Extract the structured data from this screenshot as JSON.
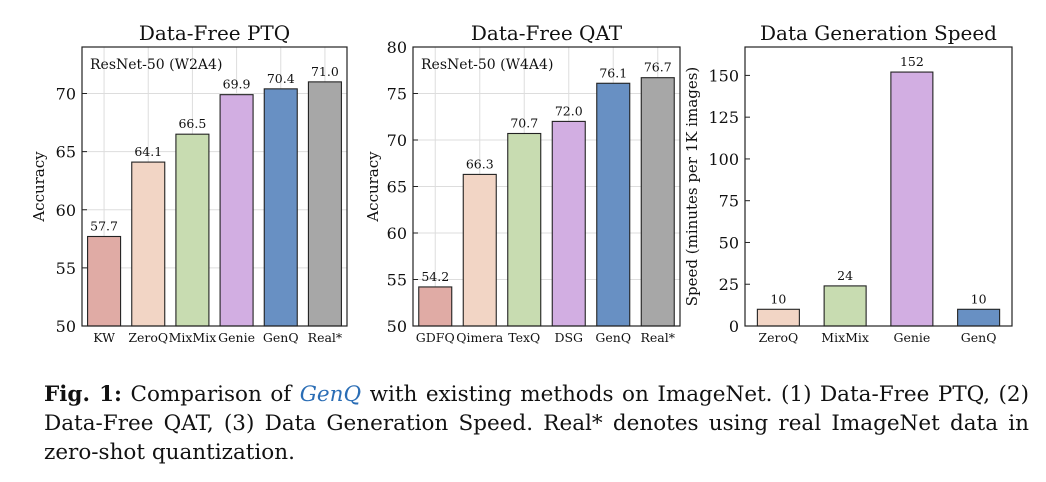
{
  "chart_data": [
    {
      "type": "bar",
      "title": "Data-Free PTQ",
      "annotation": "ResNet-50 (W2A4)",
      "ylabel": "Accuracy",
      "xlabel": "",
      "ylim": [
        50,
        74
      ],
      "yticks": [
        50,
        55,
        60,
        65,
        70
      ],
      "grid": true,
      "categories": [
        "KW",
        "ZeroQ",
        "MixMix",
        "Genie",
        "GenQ",
        "Real*"
      ],
      "values": [
        57.7,
        64.1,
        66.5,
        69.9,
        70.4,
        71.0
      ],
      "labels": [
        "57.7",
        "64.1",
        "66.5",
        "69.9",
        "70.4",
        "71.0"
      ],
      "colors": [
        "#e0aba5",
        "#f2d5c5",
        "#c8dcb1",
        "#d2aee2",
        "#6890c3",
        "#a7a7a7"
      ]
    },
    {
      "type": "bar",
      "title": "Data-Free QAT",
      "annotation": "ResNet-50 (W4A4)",
      "ylabel": "Accuracy",
      "xlabel": "",
      "ylim": [
        50,
        80
      ],
      "yticks": [
        50,
        55,
        60,
        65,
        70,
        75,
        80
      ],
      "grid": true,
      "categories": [
        "GDFQ",
        "Qimera",
        "TexQ",
        "DSG",
        "GenQ",
        "Real*"
      ],
      "values": [
        54.2,
        66.3,
        70.7,
        72.0,
        76.1,
        76.7
      ],
      "labels": [
        "54.2",
        "66.3",
        "70.7",
        "72.0",
        "76.1",
        "76.7"
      ],
      "colors": [
        "#e0aba5",
        "#f2d5c5",
        "#c8dcb1",
        "#d2aee2",
        "#6890c3",
        "#a7a7a7"
      ]
    },
    {
      "type": "bar",
      "title": "Data Generation Speed",
      "annotation": "",
      "ylabel": "Speed (minutes per 1K images)",
      "xlabel": "",
      "ylim": [
        0,
        167
      ],
      "yticks": [
        0,
        25,
        50,
        75,
        100,
        125,
        150
      ],
      "grid": false,
      "categories": [
        "ZeroQ",
        "MixMix",
        "Genie",
        "GenQ"
      ],
      "values": [
        10,
        24,
        152,
        10
      ],
      "labels": [
        "10",
        "24",
        "152",
        "10"
      ],
      "colors": [
        "#f2d5c5",
        "#c8dcb1",
        "#d2aee2",
        "#6890c3"
      ]
    }
  ],
  "caption": {
    "fig_label": "Fig. 1:",
    "text_before": " Comparison of ",
    "method": "GenQ",
    "text_after": " with existing methods on ImageNet. (1) Data-Free PTQ, (2) Data-Free QAT, (3) Data Generation Speed. Real* denotes using real ImageNet data in zero-shot quantization."
  }
}
